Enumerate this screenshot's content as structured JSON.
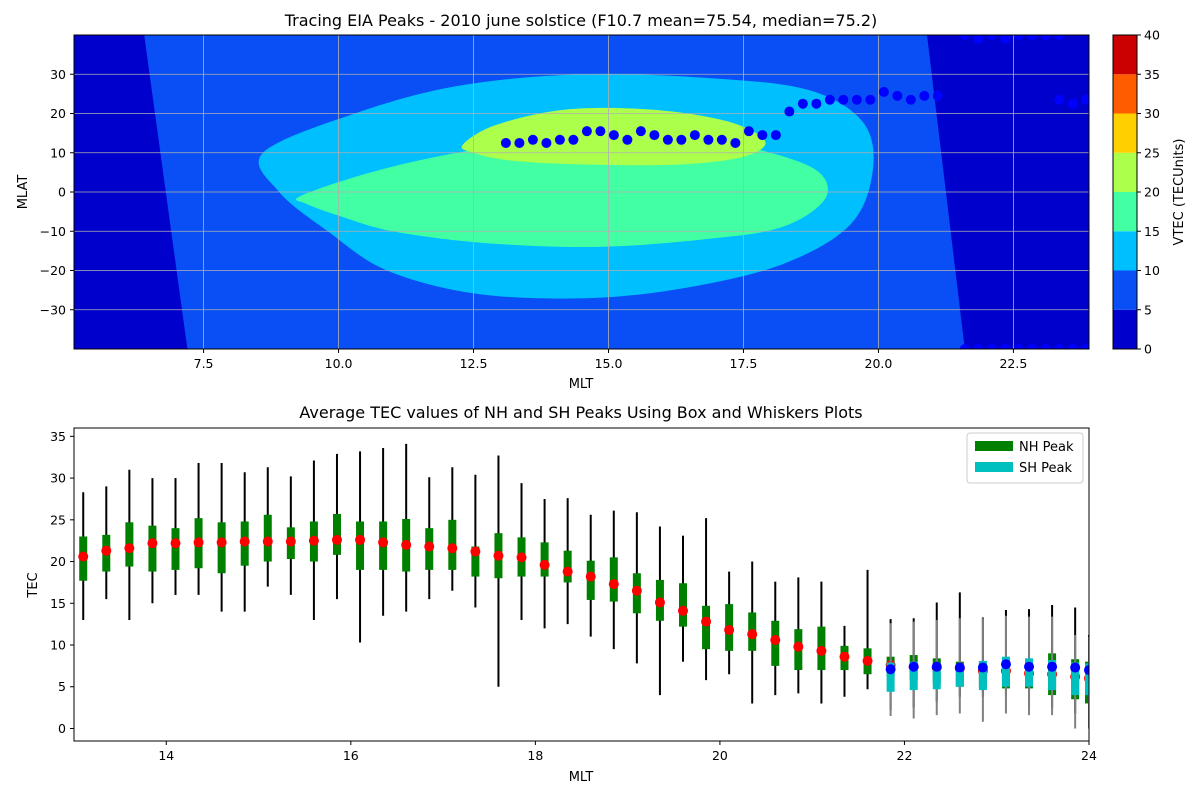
{
  "chart_data": [
    {
      "type": "heatmap",
      "title": "Tracing EIA Peaks - 2010 june solstice (F10.7 mean=75.54, median=75.2)",
      "xlabel": "MLT",
      "ylabel": "MLAT",
      "xlim": [
        5.1,
        23.9
      ],
      "ylim": [
        -40,
        40
      ],
      "xticks": [
        7.5,
        10.0,
        12.5,
        15.0,
        17.5,
        20.0,
        22.5
      ],
      "xtick_labels": [
        "7.5",
        "10.0",
        "12.5",
        "15.0",
        "17.5",
        "20.0",
        "22.5"
      ],
      "yticks": [
        -30,
        -20,
        -10,
        0,
        10,
        20,
        30
      ],
      "ytick_labels": [
        "−30",
        "−20",
        "−10",
        "0",
        "10",
        "20",
        "30"
      ],
      "grid": true,
      "colorbar": {
        "label": "VTEC (TECUnits)",
        "levels": [
          0,
          5,
          10,
          15,
          20,
          25,
          30,
          35,
          40
        ],
        "tick_labels": [
          "0",
          "5",
          "10",
          "15",
          "20",
          "25",
          "30",
          "35",
          "40"
        ],
        "colors": [
          "#0000cd",
          "#0a4ff5",
          "#00bfff",
          "#43ffa3",
          "#acff4b",
          "#ffd000",
          "#ff5c00",
          "#cb0000"
        ]
      },
      "contour_regions": [
        {
          "level": 1,
          "mlt": [
            6.4,
            9.8,
            11.7,
            13.6,
            15.9,
            18.3,
            19.8,
            20.9,
            21.6,
            20.4,
            18.5,
            16.4,
            13.8,
            11.7,
            9.0,
            7.2
          ],
          "mlat_upper": [
            40,
            40,
            40,
            40,
            40,
            40,
            40,
            40,
            40
          ],
          "mlat": [
            40,
            40,
            40,
            40,
            40,
            40,
            40,
            40,
            -40,
            -40,
            -40,
            -40,
            -40,
            -40,
            -40,
            -40
          ]
        },
        {
          "level": 2,
          "mlt": [
            8.6,
            10.3,
            12.2,
            14.5,
            16.9,
            18.7,
            19.7,
            19.9,
            19.5,
            18.3,
            16.6,
            14.7,
            12.6,
            10.9,
            9.8,
            8.9
          ],
          "mlat": [
            10,
            20,
            27,
            30,
            29,
            26,
            18,
            6,
            -8,
            -18,
            -24,
            -27,
            -26,
            -20,
            -10,
            0
          ]
        },
        {
          "level": 3,
          "mlt": [
            9.3,
            10.6,
            12.2,
            14.5,
            16.6,
            18.0,
            18.9,
            19.0,
            18.2,
            16.8,
            14.8,
            12.7,
            11.0,
            10.0,
            9.4
          ],
          "mlat": [
            -1,
            5,
            10,
            15,
            14,
            10,
            5,
            -2,
            -9,
            -12,
            -14,
            -13,
            -10,
            -6,
            -3
          ]
        },
        {
          "level": 4,
          "mlt": [
            12.3,
            12.9,
            14.2,
            15.8,
            17.2,
            17.9,
            17.5,
            16.3,
            14.6,
            13.2,
            12.5
          ],
          "mlat": [
            12,
            17,
            21,
            21,
            18,
            13,
            9,
            7,
            7,
            8,
            10
          ]
        }
      ],
      "series": [
        {
          "name": "NH peak",
          "marker_color": "#0000ff",
          "x": [
            13.1,
            13.35,
            13.6,
            13.85,
            14.1,
            14.35,
            14.6,
            14.85,
            15.1,
            15.35,
            15.6,
            15.85,
            16.1,
            16.35,
            16.6,
            16.85,
            17.1,
            17.35,
            17.6,
            17.85,
            18.1,
            18.35,
            18.6,
            18.85,
            19.1,
            19.35,
            19.6,
            19.85,
            20.1,
            20.35,
            20.6,
            20.85,
            21.1,
            23.35,
            23.6,
            23.85
          ],
          "y": [
            12.5,
            12.5,
            13.3,
            12.5,
            13.3,
            13.3,
            15.5,
            15.5,
            14.5,
            13.3,
            15.5,
            14.5,
            13.3,
            13.3,
            14.5,
            13.3,
            13.3,
            12.5,
            15.5,
            14.5,
            14.5,
            20.5,
            22.5,
            22.5,
            23.5,
            23.5,
            23.5,
            23.5,
            25.5,
            24.5,
            23.5,
            24.5,
            24.5,
            23.5,
            22.5,
            23.5
          ]
        },
        {
          "name": "edge points",
          "marker_color": "#0000ff",
          "x": [
            21.6,
            21.85,
            22.1,
            22.35,
            22.6,
            22.85,
            23.1,
            23.35,
            21.6,
            21.85,
            22.1,
            22.35,
            22.6,
            22.85,
            23.1,
            23.35,
            23.6,
            23.85
          ],
          "y": [
            40,
            39,
            40,
            39,
            40,
            40,
            40,
            40,
            -40,
            -40,
            -40,
            -40,
            -40,
            -40,
            -40,
            -40,
            -40,
            -40
          ]
        }
      ]
    },
    {
      "type": "box",
      "title": "Average TEC values of NH and SH Peaks Using Box and Whiskers Plots",
      "xlabel": "MLT",
      "ylabel": "TEC",
      "xlim": [
        13.0,
        24.0
      ],
      "ylim": [
        -1.5,
        36.0
      ],
      "xticks": [
        14,
        16,
        18,
        20,
        22,
        24
      ],
      "xtick_labels": [
        "14",
        "16",
        "18",
        "20",
        "22",
        "24"
      ],
      "yticks": [
        0,
        5,
        10,
        15,
        20,
        25,
        30,
        35
      ],
      "ytick_labels": [
        "0",
        "5",
        "10",
        "15",
        "20",
        "25",
        "30",
        "35"
      ],
      "legend": {
        "position": "top-right",
        "entries": [
          {
            "label": "NH Peak",
            "color": "#008000"
          },
          {
            "label": "SH Peak",
            "color": "#00bfbf"
          }
        ]
      },
      "series": [
        {
          "name": "NH Peak",
          "color": "#008000",
          "whisker_color": "#000000",
          "mean_color": "#ff0000",
          "x": [
            13.1,
            13.35,
            13.6,
            13.85,
            14.1,
            14.35,
            14.6,
            14.85,
            15.1,
            15.35,
            15.6,
            15.85,
            16.1,
            16.35,
            16.6,
            16.85,
            17.1,
            17.35,
            17.6,
            17.85,
            18.1,
            18.35,
            18.6,
            18.85,
            19.1,
            19.35,
            19.6,
            19.85,
            20.1,
            20.35,
            20.6,
            20.85,
            21.1,
            21.35,
            21.6,
            21.85,
            22.1,
            22.35,
            22.6,
            22.85,
            23.1,
            23.35,
            23.6,
            23.85,
            24.0
          ],
          "min": [
            13,
            15.5,
            13,
            15,
            16,
            16,
            14,
            14,
            17,
            16,
            13,
            15.5,
            10.3,
            13.5,
            14,
            15.5,
            16.5,
            14.5,
            5,
            13,
            12,
            12.5,
            11,
            9.5,
            7.8,
            4,
            8,
            5.8,
            6.5,
            3,
            4,
            4.2,
            3,
            3.8,
            4.7,
            2.2,
            2.5,
            3.2,
            3.8,
            3.8,
            3.8,
            2.5,
            2.5,
            1.8,
            0
          ],
          "q1": [
            17.7,
            18.8,
            19.4,
            18.8,
            19,
            19.2,
            18.6,
            19.5,
            20,
            20.3,
            20,
            20.8,
            19,
            19,
            18.8,
            19,
            19,
            18.2,
            18,
            18.2,
            18.2,
            17.5,
            15.4,
            15.2,
            13.8,
            12.9,
            12.2,
            9.5,
            9.3,
            9.3,
            7.5,
            7.0,
            7.0,
            7.0,
            6.5,
            6.2,
            5.8,
            5.4,
            5.0,
            5.0,
            4.8,
            4.8,
            4.0,
            3.5,
            3.0
          ],
          "mean": [
            20.6,
            21.3,
            21.6,
            22.2,
            22.2,
            22.3,
            22.3,
            22.4,
            22.4,
            22.4,
            22.5,
            22.6,
            22.6,
            22.3,
            22.0,
            21.8,
            21.6,
            21.2,
            20.7,
            20.5,
            19.6,
            18.8,
            18.2,
            17.3,
            16.5,
            15.1,
            14.1,
            12.8,
            11.8,
            11.3,
            10.6,
            9.8,
            9.3,
            8.6,
            8.1,
            7.6,
            7.4,
            7.3,
            7.2,
            6.9,
            6.9,
            6.6,
            6.5,
            6.2,
            6.0
          ],
          "q3": [
            23,
            23.2,
            24.7,
            24.3,
            24,
            25.2,
            24.7,
            24.8,
            25.6,
            24.1,
            24.8,
            25.7,
            24.8,
            24.8,
            25.1,
            24.0,
            25.0,
            21.8,
            23.4,
            22.9,
            22.3,
            21.3,
            20.1,
            20.5,
            18.6,
            17.8,
            17.4,
            14.7,
            14.9,
            13.9,
            12.9,
            11.9,
            12.2,
            9.9,
            9.6,
            8.6,
            8.8,
            8.4,
            8.0,
            8.0,
            8.0,
            8.2,
            9.0,
            8.3,
            8.0
          ],
          "max": [
            28.3,
            29,
            31,
            30,
            30,
            31.8,
            31.8,
            30.7,
            31.3,
            30.2,
            32.1,
            32.9,
            33.2,
            33.6,
            34.1,
            30.1,
            31.3,
            30.4,
            32.7,
            29.4,
            27.5,
            27.6,
            25.6,
            26.1,
            25.9,
            24.2,
            23.1,
            25.2,
            18.8,
            20.0,
            17.6,
            18.1,
            17.6,
            12.3,
            19.0,
            13.1,
            13.2,
            15.1,
            16.3,
            13.3,
            14.2,
            14.3,
            14.8,
            14.5,
            11.2
          ]
        },
        {
          "name": "SH Peak",
          "color": "#00bfbf",
          "whisker_color": "#808080",
          "mean_color": "#0000ff",
          "x": [
            21.85,
            22.1,
            22.35,
            22.6,
            22.85,
            23.1,
            23.35,
            23.6,
            23.85,
            24.0
          ],
          "min": [
            1.5,
            1.2,
            1.6,
            1.8,
            0.8,
            1.8,
            1.6,
            1.6,
            0.0,
            0.0
          ],
          "q1": [
            4.4,
            4.6,
            4.7,
            5.0,
            4.6,
            5.0,
            5.0,
            4.6,
            4.0,
            4.0
          ],
          "mean": [
            7.1,
            7.4,
            7.4,
            7.3,
            7.3,
            7.7,
            7.4,
            7.4,
            7.3,
            7.0
          ],
          "q3": [
            7.9,
            8.0,
            7.7,
            7.6,
            8.1,
            8.6,
            8.4,
            8.2,
            7.9,
            7.8
          ],
          "max": [
            12.6,
            12.8,
            13.0,
            13.2,
            13.2,
            13.5,
            13.4,
            13.4,
            11.2,
            11.0
          ]
        }
      ]
    }
  ]
}
